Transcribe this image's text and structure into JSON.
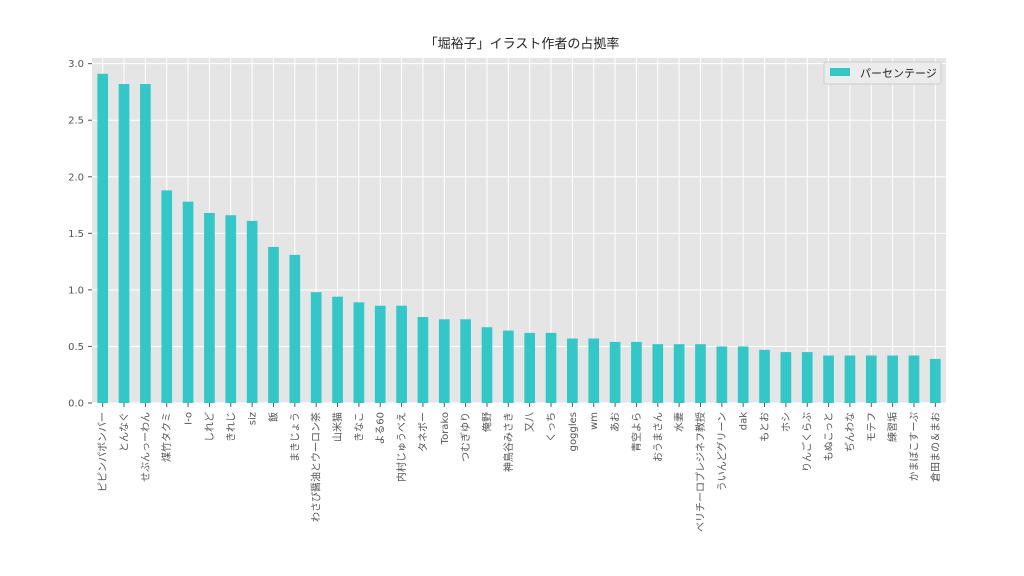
{
  "chart_data": {
    "type": "bar",
    "title": "「堀裕子」イラスト作者の占拠率",
    "xlabel": "",
    "ylabel": "",
    "ylim": [
      0,
      3.05
    ],
    "yticks": [
      "0.0",
      "0.5",
      "1.0",
      "1.5",
      "2.0",
      "2.5",
      "3.0"
    ],
    "grid": true,
    "legend_position": "top-right",
    "colors": {
      "bar": "#33c8c8",
      "plot_bg": "#e5e5e5",
      "grid": "#ffffff"
    },
    "categories": [
      "ピピンパボンバー",
      "とんなぐ",
      "せぶんっーわん",
      "煤竹タクミ",
      "I-o",
      "しれど",
      "きれじ",
      "siz",
      "飯",
      "まきじょう",
      "わさび醤油とウーロン茶",
      "山米猫",
      "きなこ",
      "よる60",
      "内村じゅうべえ",
      "タネボー",
      "Torako",
      "つむぎゆり",
      "俺野",
      "神鳥谷みさき",
      "又八",
      "くっち",
      "goggles",
      "wm",
      "あお",
      "青空よら",
      "おうまさん",
      "水妻",
      "ベリチーロプレジネフ教授",
      "ういんどグリーン",
      "dak",
      "もとお",
      "ホシ",
      "りんごくらぶ",
      "もぬこっと",
      "ぢんわな",
      "モテフ",
      "練習垢",
      "かまぼこすーぷ",
      "倉田まの＆まお"
    ],
    "series": [
      {
        "name": "パーセンテージ",
        "values": [
          2.91,
          2.82,
          2.82,
          1.88,
          1.78,
          1.68,
          1.66,
          1.61,
          1.38,
          1.31,
          0.98,
          0.94,
          0.89,
          0.86,
          0.86,
          0.76,
          0.74,
          0.74,
          0.67,
          0.64,
          0.62,
          0.62,
          0.57,
          0.57,
          0.54,
          0.54,
          0.52,
          0.52,
          0.52,
          0.5,
          0.5,
          0.47,
          0.45,
          0.45,
          0.42,
          0.42,
          0.42,
          0.42,
          0.42,
          0.39
        ]
      }
    ]
  }
}
